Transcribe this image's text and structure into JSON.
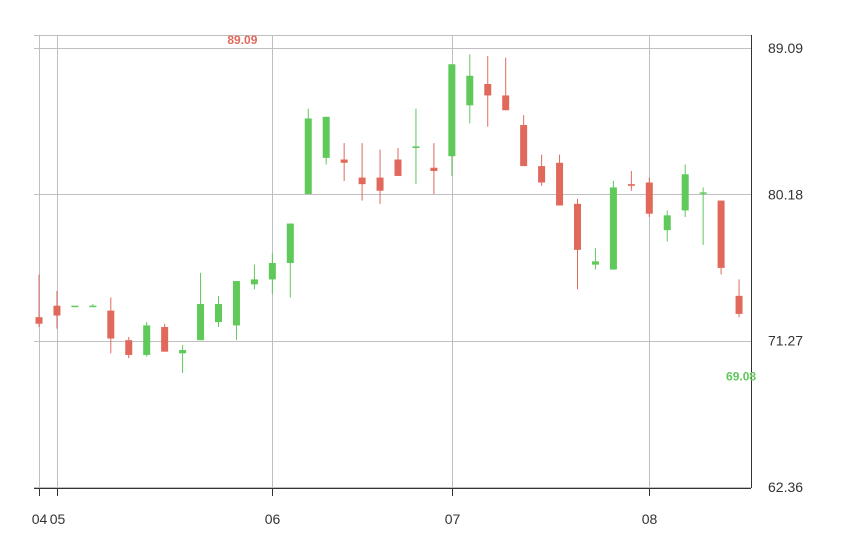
{
  "chart_data": {
    "type": "candlestick",
    "y_axis": {
      "ticks": [
        "89.09",
        "80.18",
        "71.27",
        "62.36"
      ],
      "tick_values": [
        89.09,
        80.18,
        71.27,
        62.36
      ],
      "range": [
        62.36,
        89.09
      ],
      "position": "right"
    },
    "x_axis": {
      "ticks": [
        "04",
        "05",
        "06",
        "07",
        "08"
      ],
      "tick_candle_index": [
        0,
        1,
        13,
        23,
        34
      ]
    },
    "grid": true,
    "colors": {
      "up": "#5fc95a",
      "down": "#e0695c",
      "grid": "#bfbfbf",
      "axis": "#333333"
    },
    "annotations": {
      "high": {
        "label": "89.09",
        "value": 89.09,
        "candle_index": 12
      },
      "low": {
        "label": "69.08",
        "value": 69.08,
        "candle_index": 39
      }
    },
    "candles": [
      {
        "o": 72.7,
        "h": 75.3,
        "l": 72.1,
        "c": 72.3
      },
      {
        "o": 73.4,
        "h": 74.3,
        "l": 72.0,
        "c": 72.8
      },
      {
        "o": 73.4,
        "h": 73.4,
        "l": 73.4,
        "c": 73.4
      },
      {
        "o": 73.4,
        "h": 73.5,
        "l": 73.4,
        "c": 73.4
      },
      {
        "o": 73.1,
        "h": 73.9,
        "l": 70.5,
        "c": 71.4
      },
      {
        "o": 71.3,
        "h": 71.5,
        "l": 70.2,
        "c": 70.4
      },
      {
        "o": 70.4,
        "h": 72.4,
        "l": 70.3,
        "c": 72.2
      },
      {
        "o": 72.1,
        "h": 72.3,
        "l": 70.6,
        "c": 70.6
      },
      {
        "o": 70.5,
        "h": 71.0,
        "l": 69.3,
        "c": 70.7
      },
      {
        "o": 71.3,
        "h": 75.4,
        "l": 71.3,
        "c": 73.5
      },
      {
        "o": 72.4,
        "h": 74.0,
        "l": 72.1,
        "c": 73.5
      },
      {
        "o": 72.2,
        "h": 74.9,
        "l": 71.3,
        "c": 74.9
      },
      {
        "o": 74.7,
        "h": 75.9,
        "l": 74.4,
        "c": 75.0
      },
      {
        "o": 75.0,
        "h": 76.6,
        "l": 74.1,
        "c": 76.0
      },
      {
        "o": 76.0,
        "h": 78.4,
        "l": 73.9,
        "c": 78.4
      },
      {
        "o": 80.2,
        "h": 85.4,
        "l": 80.2,
        "c": 84.8
      },
      {
        "o": 82.4,
        "h": 84.9,
        "l": 82.0,
        "c": 84.9
      },
      {
        "o": 82.3,
        "h": 83.3,
        "l": 81.0,
        "c": 82.1
      },
      {
        "o": 81.2,
        "h": 83.3,
        "l": 79.8,
        "c": 80.8
      },
      {
        "o": 81.2,
        "h": 82.9,
        "l": 79.6,
        "c": 80.4
      },
      {
        "o": 82.3,
        "h": 83.0,
        "l": 81.3,
        "c": 81.3
      },
      {
        "o": 83.0,
        "h": 85.4,
        "l": 80.8,
        "c": 83.1
      },
      {
        "o": 81.8,
        "h": 83.3,
        "l": 80.2,
        "c": 81.6
      },
      {
        "o": 82.5,
        "h": 88.1,
        "l": 81.3,
        "c": 88.1
      },
      {
        "o": 85.6,
        "h": 88.7,
        "l": 84.5,
        "c": 87.4
      },
      {
        "o": 86.9,
        "h": 88.6,
        "l": 84.3,
        "c": 86.2
      },
      {
        "o": 86.2,
        "h": 88.5,
        "l": 85.3,
        "c": 85.3
      },
      {
        "o": 84.4,
        "h": 85.0,
        "l": 81.9,
        "c": 81.9
      },
      {
        "o": 81.9,
        "h": 82.6,
        "l": 80.7,
        "c": 80.9
      },
      {
        "o": 82.1,
        "h": 82.6,
        "l": 79.5,
        "c": 79.5
      },
      {
        "o": 79.6,
        "h": 79.9,
        "l": 74.4,
        "c": 76.8
      },
      {
        "o": 75.9,
        "h": 76.9,
        "l": 75.6,
        "c": 76.1
      },
      {
        "o": 75.6,
        "h": 81.0,
        "l": 75.6,
        "c": 80.6
      },
      {
        "o": 80.8,
        "h": 81.6,
        "l": 80.4,
        "c": 80.7
      },
      {
        "o": 80.9,
        "h": 81.2,
        "l": 78.8,
        "c": 79.0
      },
      {
        "o": 78.0,
        "h": 79.2,
        "l": 77.3,
        "c": 78.9
      },
      {
        "o": 79.2,
        "h": 82.0,
        "l": 78.8,
        "c": 81.4
      },
      {
        "o": 80.3,
        "h": 80.6,
        "l": 77.1,
        "c": 80.3
      },
      {
        "o": 79.8,
        "h": 79.8,
        "l": 75.3,
        "c": 75.7
      },
      {
        "o": 74.0,
        "h": 75.0,
        "l": 72.7,
        "c": 72.9
      }
    ]
  }
}
